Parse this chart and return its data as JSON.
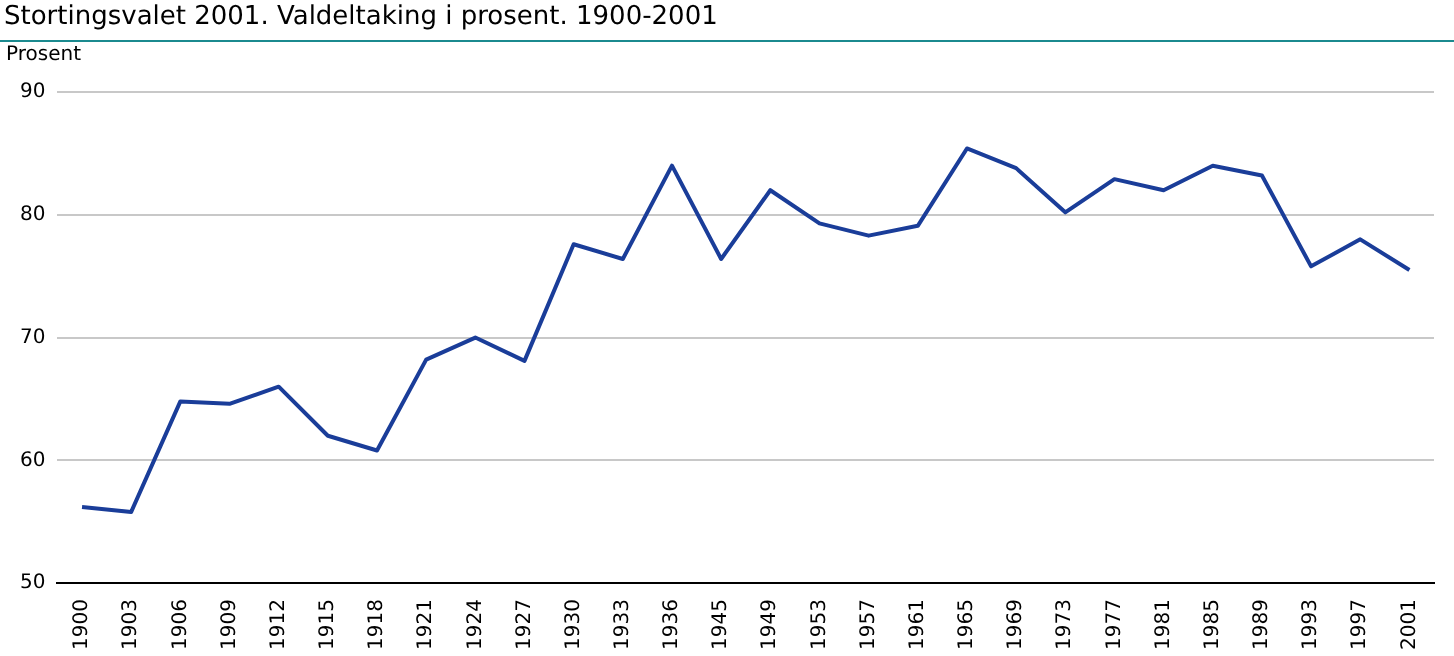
{
  "chart_data": {
    "type": "line",
    "title": "Stortingsvalet 2001. Valdeltaking i prosent. 1900-2001",
    "ylabel": "Prosent",
    "categories": [
      "1900",
      "1903",
      "1906",
      "1909",
      "1912",
      "1915",
      "1918",
      "1921",
      "1924",
      "1927",
      "1930",
      "1933",
      "1936",
      "1945",
      "1949",
      "1953",
      "1957",
      "1961",
      "1965",
      "1969",
      "1973",
      "1977",
      "1981",
      "1985",
      "1989",
      "1993",
      "1997",
      "2001"
    ],
    "series": [
      {
        "color": "#1a3d99",
        "values": [
          56.2,
          55.8,
          64.8,
          64.6,
          66.0,
          62.0,
          60.8,
          68.2,
          70.0,
          68.1,
          77.6,
          76.4,
          84.0,
          76.4,
          82.0,
          79.3,
          78.3,
          79.1,
          85.4,
          83.8,
          80.2,
          82.9,
          82.0,
          84.0,
          83.2,
          75.8,
          78.0,
          75.5
        ]
      }
    ],
    "ylim": [
      50,
      90
    ],
    "yticks": [
      50,
      60,
      70,
      80,
      90
    ],
    "grid": "y",
    "legend": false,
    "marker": "none",
    "line_style": "solid"
  }
}
